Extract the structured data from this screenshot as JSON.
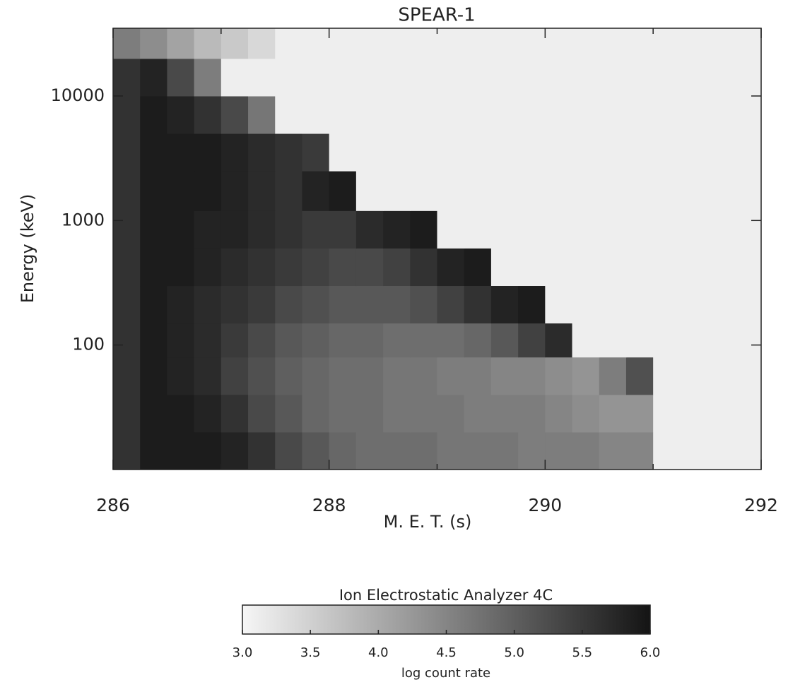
{
  "chart_data": {
    "type": "heatmap",
    "title": "SPEAR-1",
    "xlabel": "M. E. T. (s)",
    "ylabel": "Energy (keV)",
    "x": [
      286,
      286.25,
      286.5,
      286.75,
      287,
      287.25,
      287.5,
      287.75,
      288,
      288.25,
      288.5,
      288.75,
      289,
      289.25,
      289.5,
      289.75,
      290,
      290.25,
      290.5,
      290.75,
      291,
      291.25,
      291.5,
      291.75,
      292
    ],
    "y": [
      10,
      20,
      40,
      80,
      150,
      300,
      600,
      1200,
      2500,
      5000,
      10000,
      20000,
      35000
    ],
    "values": [
      [
        5.6,
        5.9,
        5.9,
        5.9,
        5.8,
        5.6,
        5.3,
        5.1,
        4.9,
        4.8,
        4.8,
        4.8,
        4.7,
        4.7,
        4.7,
        4.6,
        4.6,
        4.6,
        4.5,
        4.5,
        3.1,
        3.1,
        3.1,
        3.1
      ],
      [
        5.6,
        5.9,
        5.9,
        5.8,
        5.6,
        5.3,
        5.1,
        4.9,
        4.8,
        4.8,
        4.7,
        4.7,
        4.7,
        4.6,
        4.6,
        4.6,
        4.5,
        4.4,
        4.3,
        4.3,
        3.1,
        3.1,
        3.1,
        3.1
      ],
      [
        5.6,
        5.9,
        5.8,
        5.7,
        5.4,
        5.2,
        5.0,
        4.9,
        4.8,
        4.8,
        4.7,
        4.7,
        4.6,
        4.6,
        4.5,
        4.5,
        4.4,
        4.3,
        4.6,
        5.2,
        3.1,
        3.1,
        3.1,
        3.1
      ],
      [
        5.6,
        5.9,
        5.8,
        5.7,
        5.5,
        5.3,
        5.1,
        5.0,
        4.9,
        4.9,
        4.8,
        4.8,
        4.8,
        4.9,
        5.1,
        5.4,
        5.7,
        3.1,
        3.1,
        3.1,
        3.1,
        3.1,
        3.1,
        3.1
      ],
      [
        5.6,
        5.9,
        5.8,
        5.7,
        5.6,
        5.5,
        5.3,
        5.2,
        5.1,
        5.1,
        5.1,
        5.2,
        5.4,
        5.6,
        5.8,
        5.9,
        3.1,
        3.1,
        3.1,
        3.1,
        3.1,
        3.1,
        3.1,
        3.1
      ],
      [
        5.6,
        5.9,
        5.9,
        5.8,
        5.7,
        5.6,
        5.5,
        5.4,
        5.3,
        5.3,
        5.4,
        5.6,
        5.8,
        5.9,
        3.1,
        3.1,
        3.1,
        3.1,
        3.1,
        3.1,
        3.1,
        3.1,
        3.1,
        3.1
      ],
      [
        5.6,
        5.9,
        5.9,
        5.8,
        5.8,
        5.7,
        5.6,
        5.5,
        5.5,
        5.7,
        5.8,
        5.9,
        3.1,
        3.1,
        3.1,
        3.1,
        3.1,
        3.1,
        3.1,
        3.1,
        3.1,
        3.1,
        3.1,
        3.1
      ],
      [
        5.6,
        5.9,
        5.9,
        5.9,
        5.8,
        5.7,
        5.6,
        5.8,
        5.9,
        3.1,
        3.1,
        3.1,
        3.1,
        3.1,
        3.1,
        3.1,
        3.1,
        3.1,
        3.1,
        3.1,
        3.1,
        3.1,
        3.1,
        3.1
      ],
      [
        5.6,
        5.9,
        5.9,
        5.9,
        5.8,
        5.7,
        5.6,
        5.5,
        3.1,
        3.1,
        3.1,
        3.1,
        3.1,
        3.1,
        3.1,
        3.1,
        3.1,
        3.1,
        3.1,
        3.1,
        3.1,
        3.1,
        3.1,
        3.1
      ],
      [
        5.6,
        5.9,
        5.8,
        5.6,
        5.3,
        4.7,
        3.1,
        3.1,
        3.1,
        3.1,
        3.1,
        3.1,
        3.1,
        3.1,
        3.1,
        3.1,
        3.1,
        3.1,
        3.1,
        3.1,
        3.1,
        3.1,
        3.1,
        3.1
      ],
      [
        5.6,
        5.8,
        5.3,
        4.6,
        3.1,
        3.1,
        3.1,
        3.1,
        3.1,
        3.1,
        3.1,
        3.1,
        3.1,
        3.1,
        3.1,
        3.1,
        3.1,
        3.1,
        3.1,
        3.1,
        3.1,
        3.1,
        3.1,
        3.1
      ],
      [
        4.6,
        4.4,
        4.1,
        3.8,
        3.6,
        3.4,
        3.1,
        3.1,
        3.1,
        3.1,
        3.1,
        3.1,
        3.1,
        3.1,
        3.1,
        3.1,
        3.1,
        3.1,
        3.1,
        3.1,
        3.1,
        3.1,
        3.1,
        3.1
      ]
    ],
    "xlim": [
      286,
      292
    ],
    "xticks": [
      286,
      288,
      290,
      292
    ],
    "xminorticks": [
      287,
      289,
      291
    ],
    "ylim": [
      10,
      35000
    ],
    "yticks": [
      100,
      1000,
      10000
    ],
    "ylog": true,
    "colormap": [
      "#f6f6f6",
      "#141414"
    ],
    "colorbar_title": "Ion Electrostatic Analyzer 4C",
    "colorbar_label": "log count rate",
    "clim": [
      3.0,
      6.0
    ],
    "cticks": [
      {
        "value": 3.0,
        "label": "3.0"
      },
      {
        "value": 3.5,
        "label": "3.5"
      },
      {
        "value": 4.0,
        "label": "4.0"
      },
      {
        "value": 4.5,
        "label": "4.5"
      },
      {
        "value": 5.0,
        "label": "5.0"
      },
      {
        "value": 5.5,
        "label": "5.5"
      },
      {
        "value": 6.0,
        "label": "6.0"
      }
    ]
  }
}
